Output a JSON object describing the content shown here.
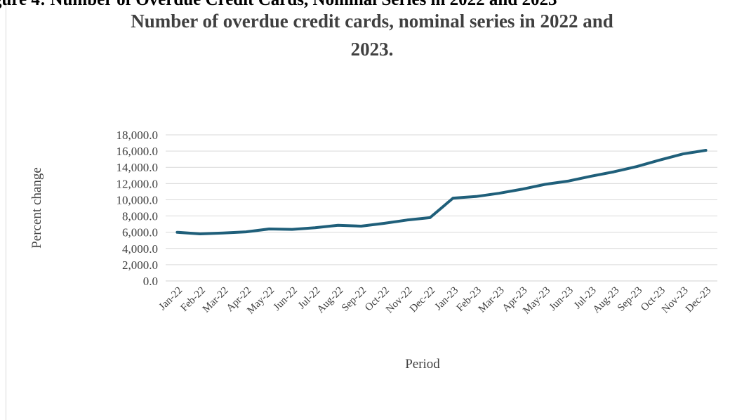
{
  "cut_heading": "gure 4: Number of Overdue Credit Cards, Nominal Series in 2022 and 2023",
  "chart_data": {
    "type": "line",
    "title_line1": "Number of overdue credit cards, nominal series in  2022 and",
    "title_line2": "2023.",
    "xlabel": "Period",
    "ylabel": "Percent change",
    "ylim": [
      0,
      18000
    ],
    "yticks": [
      "0.0",
      "2,000.0",
      "4,000.0",
      "6,000.0",
      "8,000.0",
      "10,000.0",
      "12,000.0",
      "14,000.0",
      "16,000.0",
      "18,000.0"
    ],
    "categories": [
      "Jan-22",
      "Feb-22",
      "Mar-22",
      "Apr-22",
      "May-22",
      "Jun-22",
      "Jul-22",
      "Aug-22",
      "Sep-22",
      "Oct-22",
      "Nov-22",
      "Dec-22",
      "Jan-23",
      "Feb-23",
      "Mar-23",
      "Apr-23",
      "May-23",
      "Jun-23",
      "Jul-23",
      "Aug-23",
      "Sep-23",
      "Oct-23",
      "Nov-23",
      "Dec-23"
    ],
    "values": [
      6000,
      5800,
      5900,
      6050,
      6400,
      6350,
      6550,
      6850,
      6750,
      7100,
      7500,
      7800,
      10200,
      10400,
      10800,
      11300,
      11900,
      12300,
      12900,
      13450,
      14100,
      14900,
      15650,
      16100
    ],
    "grid": true,
    "line_color": "#1f5f7a"
  }
}
